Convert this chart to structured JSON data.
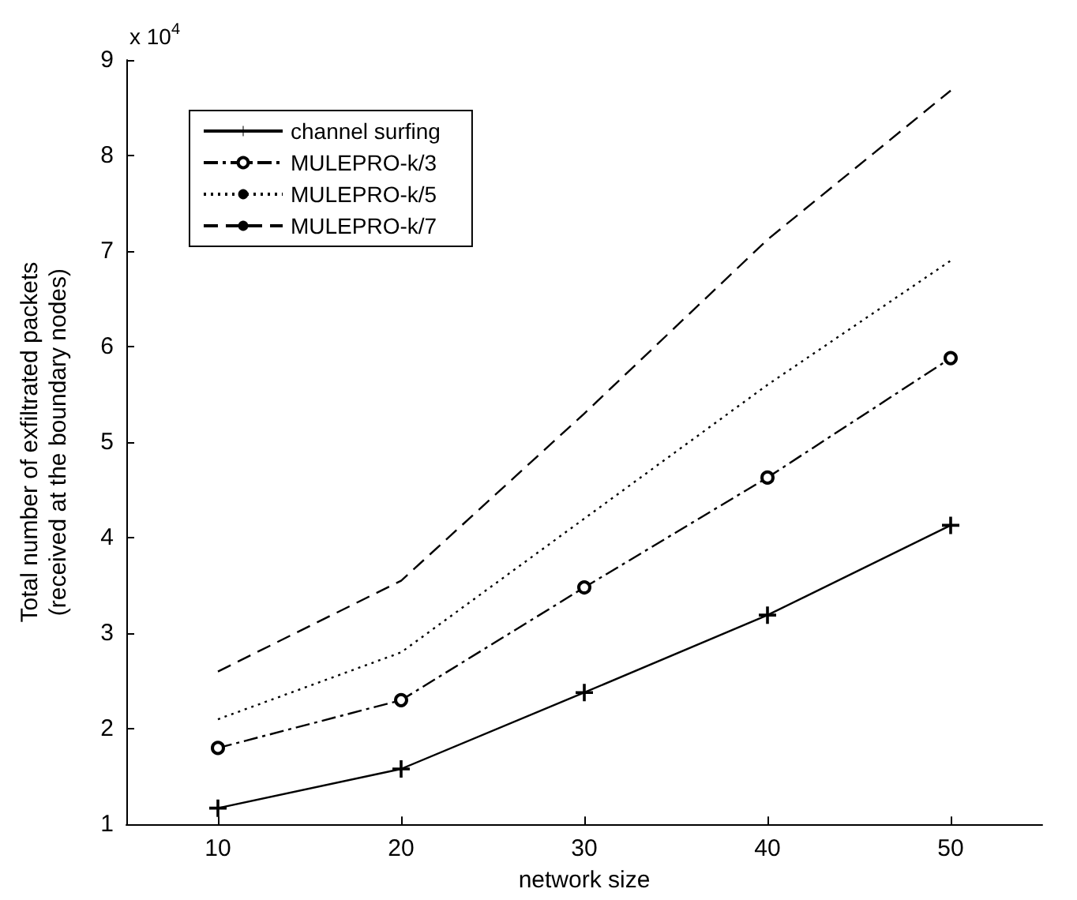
{
  "chart_data": {
    "type": "line",
    "xlabel": "network size",
    "ylabel": "Total number of exfiltrated packets\n(received at the boundary nodes)",
    "annotations": [
      "x 10$^{4}$"
    ],
    "x": [
      10,
      20,
      30,
      40,
      50
    ],
    "series": [
      {
        "name": "channel surfing",
        "color": "#000000",
        "marker": "cross",
        "line_style": "solid",
        "values": [
          1.17,
          1.58,
          2.38,
          3.19,
          4.13
        ]
      },
      {
        "name": "MULEPRO-k/3",
        "color": "#000000",
        "marker": "circle",
        "line_style": "dashdot",
        "values": [
          1.8,
          2.3,
          3.48,
          4.63,
          5.88
        ]
      },
      {
        "name": "MULEPRO-k/5",
        "color": "#000000",
        "marker": "none",
        "line_style": "dotted",
        "values": [
          2.1,
          2.8,
          4.2,
          5.6,
          6.9
        ]
      },
      {
        "name": "MULEPRO-k/7",
        "color": "#000000",
        "marker": "none",
        "line_style": "dashed",
        "values": [
          2.6,
          3.55,
          5.3,
          7.12,
          8.68
        ]
      }
    ],
    "xlim": [
      5,
      55
    ],
    "xticks": [
      10,
      20,
      30,
      40,
      50
    ],
    "ylim": [
      1,
      9
    ],
    "yticks": [
      1,
      2,
      3,
      4,
      5,
      6,
      7,
      8,
      9
    ],
    "grid": false,
    "legend": "top left"
  }
}
